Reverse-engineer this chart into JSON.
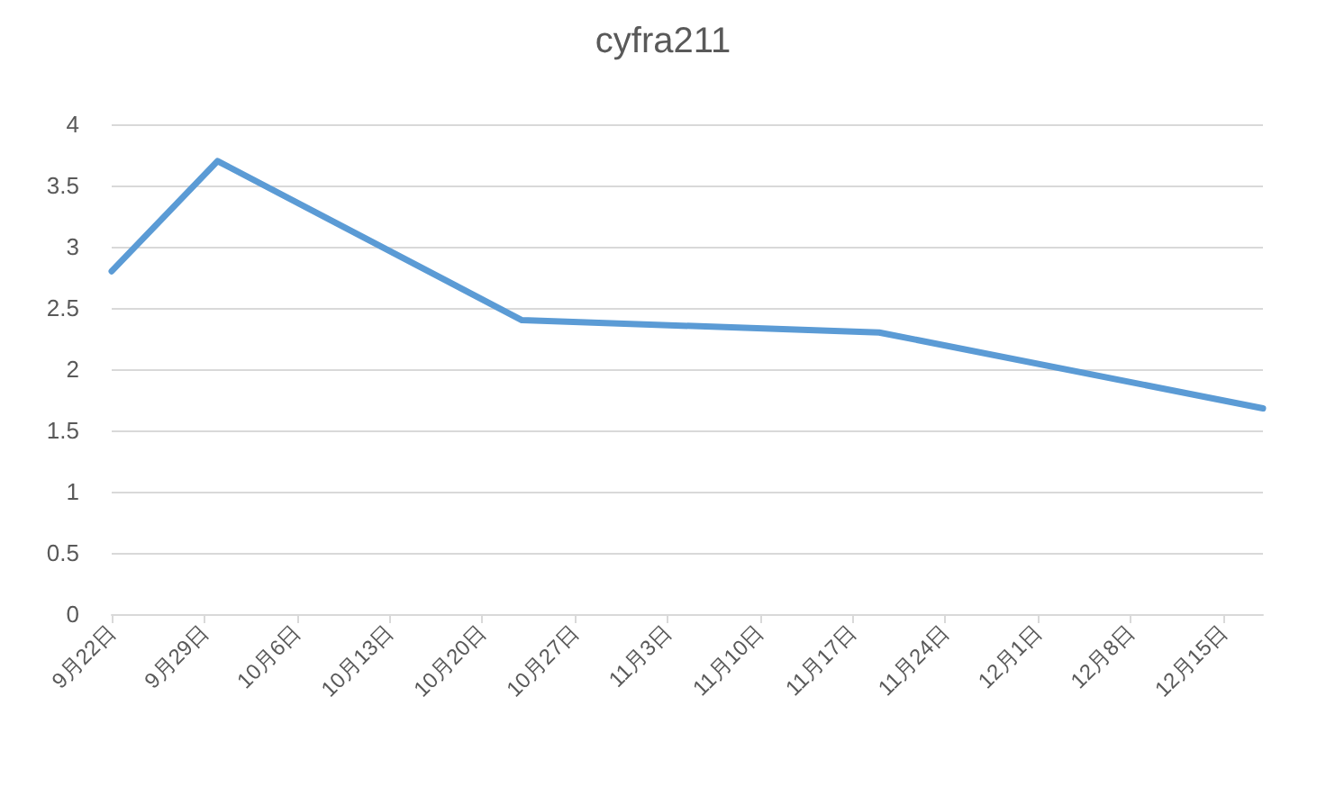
{
  "chart_data": {
    "type": "line",
    "title": "cyfra211",
    "x": [
      "--09-22",
      "--09-30",
      "--10-23",
      "--11-19",
      "--12-18"
    ],
    "series": [
      {
        "color": "#5b9bd5",
        "values": [
          2.8,
          3.7,
          2.4,
          2.3,
          1.68
        ]
      }
    ],
    "xlim": [
      "--09-22",
      "--12-18"
    ],
    "xticks": [
      {
        "value": "--09-22",
        "label": "9月22日"
      },
      {
        "value": "--09-29",
        "label": "9月29日"
      },
      {
        "value": "--10-06",
        "label": "10月6日"
      },
      {
        "value": "--10-13",
        "label": "10月13日"
      },
      {
        "value": "--10-20",
        "label": "10月20日"
      },
      {
        "value": "--10-27",
        "label": "10月27日"
      },
      {
        "value": "--11-03",
        "label": "11月3日"
      },
      {
        "value": "--11-10",
        "label": "11月10日"
      },
      {
        "value": "--11-17",
        "label": "11月17日"
      },
      {
        "value": "--11-24",
        "label": "11月24日"
      },
      {
        "value": "--12-01",
        "label": "12月1日"
      },
      {
        "value": "--12-08",
        "label": "12月8日"
      },
      {
        "value": "--12-15",
        "label": "12月15日"
      }
    ],
    "ylim": [
      0,
      4
    ],
    "yticks": [
      0,
      0.5,
      1,
      1.5,
      2,
      2.5,
      3,
      3.5,
      4
    ],
    "grid": "y",
    "marker": "none",
    "line_style": "solid"
  }
}
